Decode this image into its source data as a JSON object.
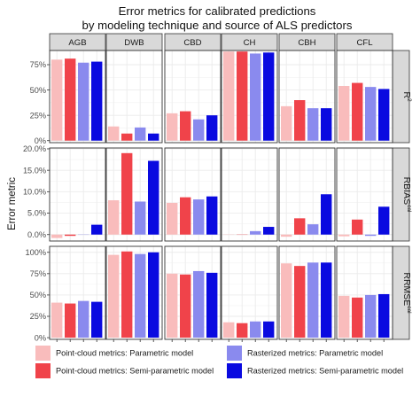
{
  "chart_data": {
    "type": "bar",
    "title": "Error metrics for calibrated predictions",
    "subtitle": "by modeling technique and source of ALS predictors",
    "ylabel": "Error metric",
    "columns": [
      "AGB",
      "DWB",
      "CBD",
      "CH",
      "CBH",
      "CFL"
    ],
    "rows": [
      {
        "label": "R²",
        "label_main": "R",
        "label_sup": "2",
        "ylim": [
          -0.02,
          0.89
        ],
        "ticks": [
          0,
          0.25,
          0.5,
          0.75
        ],
        "tick_labels": [
          "0%",
          "25%",
          "50%",
          "75%"
        ],
        "values": {
          "AGB": [
            0.8,
            0.81,
            0.77,
            0.78
          ],
          "DWB": [
            0.14,
            0.07,
            0.13,
            0.07
          ],
          "CBD": [
            0.27,
            0.29,
            0.21,
            0.25
          ],
          "CH": [
            0.88,
            0.88,
            0.86,
            0.87
          ],
          "CBH": [
            0.34,
            0.4,
            0.32,
            0.32
          ],
          "CFL": [
            0.54,
            0.57,
            0.53,
            0.51
          ]
        }
      },
      {
        "label": "RBIAS^cal",
        "label_main": "RBIAS",
        "label_sup": "cal",
        "ylim": [
          -0.015,
          0.202
        ],
        "ticks": [
          0,
          0.05,
          0.1,
          0.15,
          0.2
        ],
        "tick_labels": [
          "0.0%",
          "5.0%",
          "10.0%",
          "15.0%",
          "20.0%"
        ],
        "values": {
          "AGB": [
            -0.008,
            -0.003,
            0.0,
            0.023
          ],
          "DWB": [
            0.08,
            0.19,
            0.077,
            0.172
          ],
          "CBD": [
            0.074,
            0.087,
            0.082,
            0.089
          ],
          "CH": [
            0.0,
            0.0,
            0.008,
            0.018
          ],
          "CBH": [
            -0.005,
            0.038,
            0.024,
            0.094
          ],
          "CFL": [
            -0.004,
            0.035,
            -0.003,
            0.065
          ]
        }
      },
      {
        "label": "RRMSE^cal",
        "label_main": "RRMSE",
        "label_sup": "cal",
        "ylim": [
          -0.02,
          1.07
        ],
        "ticks": [
          0,
          0.25,
          0.5,
          0.75,
          1.0
        ],
        "tick_labels": [
          "0%",
          "25%",
          "50%",
          "75%",
          "100%"
        ],
        "values": {
          "AGB": [
            0.41,
            0.4,
            0.43,
            0.42
          ],
          "DWB": [
            0.97,
            1.01,
            0.98,
            1.0
          ],
          "CBD": [
            0.75,
            0.74,
            0.78,
            0.76
          ],
          "CH": [
            0.18,
            0.17,
            0.19,
            0.19
          ],
          "CBH": [
            0.87,
            0.84,
            0.88,
            0.88
          ],
          "CFL": [
            0.49,
            0.47,
            0.5,
            0.51
          ]
        }
      }
    ],
    "series": [
      {
        "name": "Point-cloud metrics: Parametric model",
        "color": "#f9bcbc"
      },
      {
        "name": "Point-cloud metrics: Semi-parametric model",
        "color": "#f0434a"
      },
      {
        "name": "Rasterized metrics: Parametric model",
        "color": "#8a8aee"
      },
      {
        "name": "Rasterized metrics: Semi-parametric model",
        "color": "#0a0ae0"
      }
    ],
    "grid": true,
    "legend_position": "bottom",
    "colors": {
      "panel_bg": "#ffffff",
      "grid": "#ebebeb",
      "strip_bg": "#d9d9d9",
      "border": "#333333"
    }
  }
}
